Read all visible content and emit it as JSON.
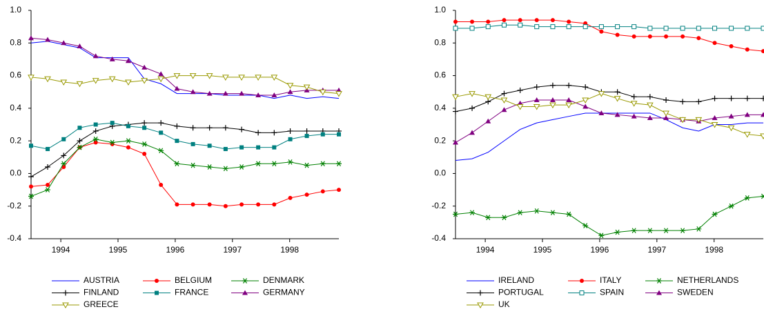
{
  "chart_data": [
    {
      "type": "line",
      "x": [
        1993.48,
        1993.77,
        1994.05,
        1994.33,
        1994.61,
        1994.9,
        1995.18,
        1995.46,
        1995.75,
        1996.03,
        1996.31,
        1996.6,
        1996.88,
        1997.16,
        1997.45,
        1997.73,
        1998.01,
        1998.3,
        1998.58,
        1998.86
      ],
      "xlim": [
        1993.48,
        1998.86
      ],
      "xticks": [
        1994,
        1995,
        1996,
        1997,
        1998
      ],
      "ylim": [
        -0.4,
        1.0
      ],
      "yticks": [
        {
          "value": 1.0,
          "label": "1.0"
        },
        0.8,
        0.6,
        0.4,
        0.2,
        {
          "value": 0,
          "label": "0.0"
        },
        -0.2,
        -0.4
      ],
      "series": [
        {
          "name": "AUSTRIA",
          "color": "#0000ff",
          "values": [
            0.8,
            0.81,
            0.79,
            0.77,
            0.71,
            0.71,
            0.71,
            0.58,
            0.55,
            0.49,
            0.49,
            0.49,
            0.48,
            0.48,
            0.48,
            0.46,
            0.48,
            0.46,
            0.47,
            0.46
          ]
        },
        {
          "name": "BELGIUM",
          "color": "#ff0000",
          "marker": "circle",
          "values": [
            -0.08,
            -0.07,
            0.04,
            0.16,
            0.19,
            0.18,
            0.16,
            0.12,
            -0.07,
            -0.19,
            -0.19,
            -0.19,
            -0.2,
            -0.19,
            -0.19,
            -0.19,
            -0.15,
            -0.13,
            -0.11,
            -0.1
          ]
        },
        {
          "name": "DENMARK",
          "color": "#008000",
          "marker": "star",
          "values": [
            -0.14,
            -0.1,
            0.06,
            0.16,
            0.21,
            0.19,
            0.2,
            0.18,
            0.14,
            0.06,
            0.05,
            0.04,
            0.03,
            0.04,
            0.06,
            0.06,
            0.07,
            0.05,
            0.06,
            0.06
          ]
        },
        {
          "name": "FINLAND",
          "color": "#000000",
          "marker": "plus",
          "values": [
            -0.02,
            0.04,
            0.11,
            0.2,
            0.26,
            0.29,
            0.3,
            0.31,
            0.31,
            0.29,
            0.28,
            0.28,
            0.28,
            0.27,
            0.25,
            0.25,
            0.26,
            0.26,
            0.26,
            0.26
          ]
        },
        {
          "name": "FRANCE",
          "color": "#008080",
          "marker": "square",
          "values": [
            0.17,
            0.15,
            0.21,
            0.28,
            0.3,
            0.31,
            0.29,
            0.28,
            0.25,
            0.2,
            0.18,
            0.17,
            0.15,
            0.16,
            0.16,
            0.16,
            0.21,
            0.23,
            0.24,
            0.24
          ]
        },
        {
          "name": "GERMANY",
          "color": "#800080",
          "marker": "triangle",
          "values": [
            0.83,
            0.82,
            0.8,
            0.78,
            0.72,
            0.7,
            0.69,
            0.65,
            0.61,
            0.52,
            0.5,
            0.49,
            0.49,
            0.49,
            0.48,
            0.48,
            0.5,
            0.51,
            0.51,
            0.51
          ]
        },
        {
          "name": "GREECE",
          "color": "#999900",
          "marker": "triangle-down-open",
          "values": [
            0.59,
            0.58,
            0.56,
            0.55,
            0.57,
            0.58,
            0.56,
            0.57,
            0.58,
            0.6,
            0.6,
            0.6,
            0.59,
            0.59,
            0.59,
            0.59,
            0.54,
            0.53,
            0.5,
            0.49
          ]
        }
      ]
    },
    {
      "type": "line",
      "x": [
        1993.48,
        1993.77,
        1994.05,
        1994.33,
        1994.61,
        1994.9,
        1995.18,
        1995.46,
        1995.75,
        1996.03,
        1996.31,
        1996.6,
        1996.88,
        1997.16,
        1997.45,
        1997.73,
        1998.01,
        1998.3,
        1998.58,
        1998.86
      ],
      "xlim": [
        1993.48,
        1998.86
      ],
      "xticks": [
        1994,
        1995,
        1996,
        1997,
        1998
      ],
      "ylim": [
        -0.4,
        1.0
      ],
      "yticks": [
        {
          "value": 1.0,
          "label": "1.0"
        },
        0.8,
        0.6,
        0.4,
        0.2,
        {
          "value": 0,
          "label": "0.0"
        },
        -0.2,
        -0.4
      ],
      "series": [
        {
          "name": "IRELAND",
          "color": "#0000ff",
          "values": [
            0.08,
            0.09,
            0.13,
            0.2,
            0.27,
            0.31,
            0.33,
            0.35,
            0.37,
            0.37,
            0.37,
            0.37,
            0.37,
            0.33,
            0.28,
            0.26,
            0.3,
            0.3,
            0.31,
            0.31
          ]
        },
        {
          "name": "ITALY",
          "color": "#ff0000",
          "marker": "circle",
          "values": [
            0.93,
            0.93,
            0.93,
            0.94,
            0.94,
            0.94,
            0.94,
            0.93,
            0.92,
            0.87,
            0.85,
            0.84,
            0.84,
            0.84,
            0.84,
            0.83,
            0.8,
            0.78,
            0.76,
            0.75
          ]
        },
        {
          "name": "NETHERLANDS",
          "color": "#008000",
          "marker": "star",
          "values": [
            -0.25,
            -0.24,
            -0.27,
            -0.27,
            -0.24,
            -0.23,
            -0.24,
            -0.25,
            -0.32,
            -0.38,
            -0.36,
            -0.35,
            -0.35,
            -0.35,
            -0.35,
            -0.34,
            -0.25,
            -0.2,
            -0.15,
            -0.14
          ]
        },
        {
          "name": "PORTUGAL",
          "color": "#000000",
          "marker": "plus",
          "values": [
            0.38,
            0.4,
            0.44,
            0.49,
            0.51,
            0.53,
            0.54,
            0.54,
            0.53,
            0.5,
            0.5,
            0.47,
            0.47,
            0.45,
            0.44,
            0.44,
            0.46,
            0.46,
            0.46,
            0.46
          ]
        },
        {
          "name": "SPAIN",
          "color": "#008080",
          "marker": "square-open",
          "values": [
            0.89,
            0.89,
            0.9,
            0.91,
            0.91,
            0.9,
            0.9,
            0.9,
            0.9,
            0.9,
            0.9,
            0.9,
            0.89,
            0.89,
            0.89,
            0.89,
            0.89,
            0.89,
            0.89,
            0.89
          ]
        },
        {
          "name": "SWEDEN",
          "color": "#800080",
          "marker": "triangle",
          "values": [
            0.19,
            0.25,
            0.32,
            0.39,
            0.43,
            0.45,
            0.45,
            0.45,
            0.41,
            0.37,
            0.36,
            0.35,
            0.34,
            0.34,
            0.33,
            0.32,
            0.34,
            0.35,
            0.36,
            0.36
          ]
        },
        {
          "name": "UK",
          "color": "#999900",
          "marker": "triangle-down-open",
          "values": [
            0.47,
            0.49,
            0.47,
            0.45,
            0.41,
            0.41,
            0.42,
            0.42,
            0.45,
            0.49,
            0.46,
            0.43,
            0.42,
            0.37,
            0.33,
            0.33,
            0.3,
            0.28,
            0.24,
            0.23
          ]
        }
      ]
    }
  ]
}
